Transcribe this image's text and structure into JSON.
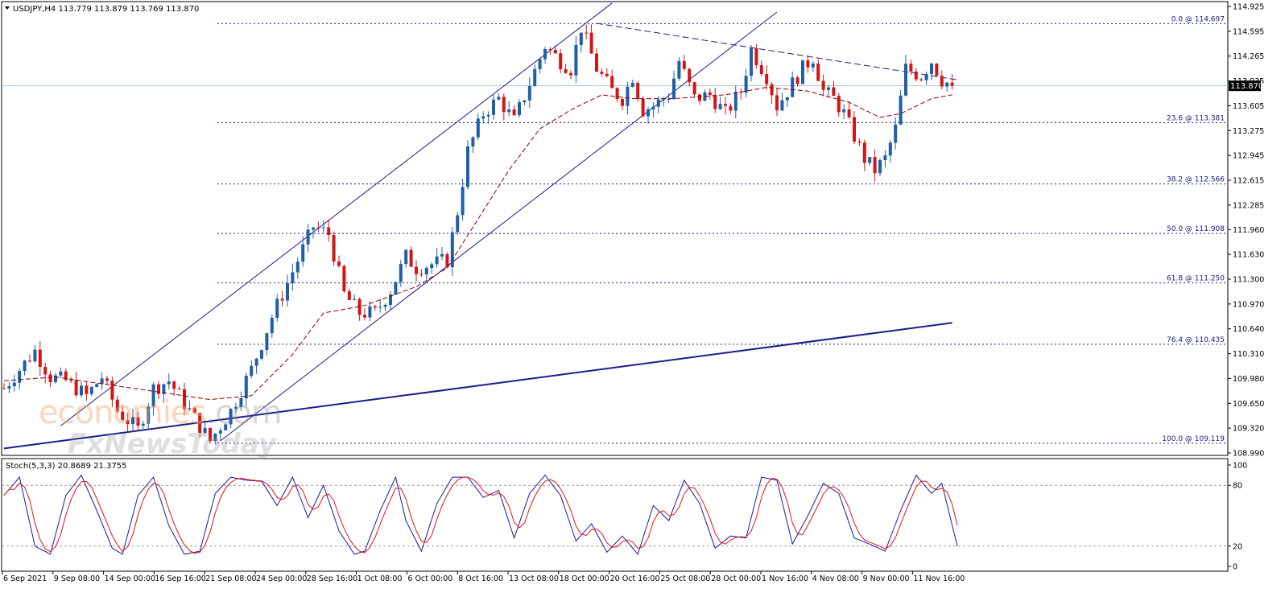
{
  "chart_data": {
    "type": "candlestick",
    "symbol": "USDJPY",
    "timeframe": "H4",
    "ohlc_header": "USDJPY,H4  113.779 113.879 113.769 113.870",
    "last_price": 113.87,
    "last_price_label": "113.870",
    "ylim": [
      108.99,
      114.925
    ],
    "y_ticks": [
      "114.925",
      "114.595",
      "114.265",
      "113.935",
      "113.605",
      "113.275",
      "112.945",
      "112.615",
      "112.285",
      "111.960",
      "111.630",
      "111.300",
      "110.970",
      "110.640",
      "110.310",
      "109.980",
      "109.650",
      "109.320",
      "108.990"
    ],
    "x_ticks": [
      "6 Sep 2021",
      "9 Sep 08:00",
      "14 Sep 00:00",
      "16 Sep 16:00",
      "21 Sep 08:00",
      "24 Sep 00:00",
      "28 Sep 16:00",
      "1 Oct 08:00",
      "6 Oct 00:00",
      "8 Oct 16:00",
      "13 Oct 08:00",
      "18 Oct 00:00",
      "20 Oct 16:00",
      "25 Oct 08:00",
      "28 Oct 00:00",
      "1 Nov 16:00",
      "4 Nov 08:00",
      "9 Nov 00:00",
      "11 Nov 16:00"
    ],
    "price_anchors": [
      [
        0,
        109.85
      ],
      [
        6,
        110.35
      ],
      [
        9,
        110.0
      ],
      [
        12,
        109.95
      ],
      [
        16,
        109.75
      ],
      [
        19,
        110.0
      ],
      [
        22,
        109.55
      ],
      [
        26,
        109.3
      ],
      [
        29,
        109.85
      ],
      [
        32,
        109.95
      ],
      [
        36,
        109.55
      ],
      [
        40,
        109.15
      ],
      [
        44,
        109.55
      ],
      [
        48,
        110.1
      ],
      [
        52,
        110.8
      ],
      [
        56,
        111.4
      ],
      [
        60,
        112.0
      ],
      [
        63,
        111.9
      ],
      [
        66,
        111.1
      ],
      [
        69,
        110.85
      ],
      [
        72,
        110.85
      ],
      [
        75,
        111.15
      ],
      [
        78,
        111.6
      ],
      [
        80,
        111.45
      ],
      [
        83,
        111.5
      ],
      [
        86,
        111.55
      ],
      [
        88,
        112.2
      ],
      [
        90,
        113.0
      ],
      [
        93,
        113.5
      ],
      [
        96,
        113.7
      ],
      [
        99,
        113.4
      ],
      [
        102,
        113.9
      ],
      [
        105,
        114.4
      ],
      [
        108,
        114.2
      ],
      [
        110,
        114.1
      ],
      [
        112,
        114.65
      ],
      [
        115,
        114.1
      ],
      [
        118,
        113.8
      ],
      [
        120,
        113.7
      ],
      [
        122,
        114.0
      ],
      [
        124,
        113.55
      ],
      [
        126,
        113.6
      ],
      [
        129,
        113.75
      ],
      [
        131,
        114.2
      ],
      [
        134,
        113.7
      ],
      [
        137,
        113.75
      ],
      [
        140,
        113.5
      ],
      [
        143,
        113.8
      ],
      [
        145,
        114.35
      ],
      [
        148,
        114.0
      ],
      [
        150,
        113.6
      ],
      [
        152,
        113.8
      ],
      [
        155,
        114.1
      ],
      [
        157,
        114.25
      ],
      [
        159,
        113.8
      ],
      [
        161,
        113.7
      ],
      [
        163,
        113.5
      ],
      [
        165,
        113.2
      ],
      [
        167,
        112.9
      ],
      [
        169,
        112.75
      ],
      [
        171,
        112.9
      ],
      [
        173,
        113.3
      ],
      [
        175,
        114.1
      ],
      [
        178,
        114.0
      ],
      [
        180,
        114.2
      ],
      [
        182,
        113.95
      ],
      [
        184,
        113.87
      ]
    ],
    "moving_average": {
      "style": "dashed",
      "color": "#8b0000",
      "anchors": [
        [
          0,
          109.95
        ],
        [
          10,
          110.0
        ],
        [
          20,
          109.9
        ],
        [
          30,
          109.8
        ],
        [
          40,
          109.7
        ],
        [
          48,
          109.75
        ],
        [
          56,
          110.3
        ],
        [
          62,
          110.85
        ],
        [
          70,
          110.95
        ],
        [
          80,
          111.2
        ],
        [
          86,
          111.45
        ],
        [
          92,
          112.1
        ],
        [
          98,
          112.75
        ],
        [
          104,
          113.3
        ],
        [
          110,
          113.55
        ],
        [
          116,
          113.75
        ],
        [
          122,
          113.7
        ],
        [
          130,
          113.7
        ],
        [
          140,
          113.75
        ],
        [
          148,
          113.85
        ],
        [
          156,
          113.8
        ],
        [
          164,
          113.65
        ],
        [
          170,
          113.45
        ],
        [
          174,
          113.5
        ],
        [
          180,
          113.7
        ],
        [
          184,
          113.75
        ]
      ]
    },
    "fibonacci": [
      {
        "ratio": "0.0",
        "price": 114.697,
        "label": "0.0 @ 114.697"
      },
      {
        "ratio": "23.6",
        "price": 113.381,
        "label": "23.6 @ 113.381"
      },
      {
        "ratio": "38.2",
        "price": 112.566,
        "label": "38.2 @ 112.566"
      },
      {
        "ratio": "50.0",
        "price": 111.908,
        "label": "50.0 @ 111.908"
      },
      {
        "ratio": "61.8",
        "price": 111.25,
        "label": "61.8 @ 111.250"
      },
      {
        "ratio": "76.4",
        "price": 110.435,
        "label": "76.4 @ 110.435"
      },
      {
        "ratio": "100.0",
        "price": 109.119,
        "label": "100.0 @ 109.119"
      }
    ],
    "trendlines": [
      {
        "name": "long-term-support",
        "from": [
          0,
          109.05
        ],
        "to": [
          184,
          110.72
        ],
        "bold": true
      },
      {
        "name": "channel-upper",
        "from": [
          11,
          109.35
        ],
        "to": [
          118,
          114.97
        ],
        "bold": false
      },
      {
        "name": "channel-lower",
        "from": [
          42,
          109.15
        ],
        "to": [
          150,
          114.85
        ],
        "bold": false
      },
      {
        "name": "descending-resistance",
        "from": [
          115,
          114.7
        ],
        "to": [
          185,
          113.95
        ],
        "bold": false,
        "dashed": true
      }
    ],
    "stochastic": {
      "label": "Stoch(5,3,3) 20.8689 21.3755",
      "main_value": 20.8689,
      "signal_value": 21.3755,
      "ylim": [
        0,
        100
      ],
      "y_ticks": [
        "100",
        "80",
        "20",
        "0"
      ],
      "levels": [
        80,
        20
      ],
      "anchors": [
        [
          0,
          70
        ],
        [
          3,
          88
        ],
        [
          6,
          20
        ],
        [
          9,
          12
        ],
        [
          12,
          70
        ],
        [
          15,
          90
        ],
        [
          18,
          55
        ],
        [
          21,
          18
        ],
        [
          23,
          12
        ],
        [
          26,
          70
        ],
        [
          29,
          88
        ],
        [
          32,
          40
        ],
        [
          35,
          12
        ],
        [
          38,
          15
        ],
        [
          41,
          72
        ],
        [
          44,
          88
        ],
        [
          47,
          85
        ],
        [
          50,
          84
        ],
        [
          53,
          60
        ],
        [
          56,
          88
        ],
        [
          59,
          48
        ],
        [
          62,
          80
        ],
        [
          65,
          35
        ],
        [
          68,
          12
        ],
        [
          70,
          15
        ],
        [
          73,
          55
        ],
        [
          76,
          88
        ],
        [
          78,
          45
        ],
        [
          81,
          15
        ],
        [
          84,
          62
        ],
        [
          87,
          88
        ],
        [
          90,
          88
        ],
        [
          93,
          68
        ],
        [
          96,
          75
        ],
        [
          99,
          28
        ],
        [
          102,
          72
        ],
        [
          105,
          90
        ],
        [
          108,
          70
        ],
        [
          111,
          25
        ],
        [
          114,
          42
        ],
        [
          117,
          14
        ],
        [
          120,
          30
        ],
        [
          123,
          12
        ],
        [
          126,
          60
        ],
        [
          129,
          45
        ],
        [
          132,
          85
        ],
        [
          135,
          62
        ],
        [
          138,
          18
        ],
        [
          141,
          30
        ],
        [
          144,
          28
        ],
        [
          147,
          88
        ],
        [
          150,
          85
        ],
        [
          153,
          22
        ],
        [
          156,
          50
        ],
        [
          159,
          82
        ],
        [
          162,
          72
        ],
        [
          165,
          28
        ],
        [
          168,
          22
        ],
        [
          171,
          15
        ],
        [
          174,
          55
        ],
        [
          177,
          90
        ],
        [
          180,
          72
        ],
        [
          182,
          82
        ],
        [
          185,
          20
        ]
      ]
    },
    "watermark": {
      "brand_a": "economies",
      "brand_a_suffix": ".com",
      "brand_b": "FxNewsToday"
    }
  }
}
